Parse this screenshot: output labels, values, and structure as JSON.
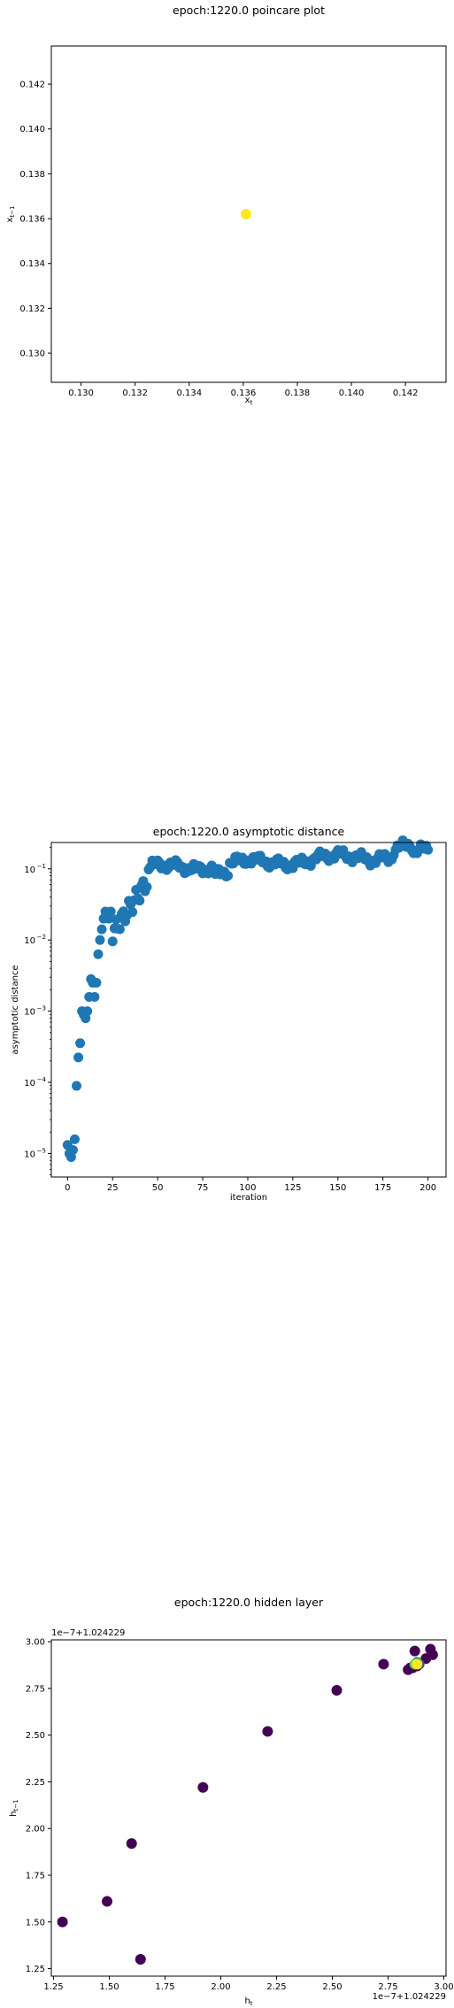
{
  "chart_data": [
    {
      "type": "scatter",
      "title": "epoch:1220.0 poincare plot",
      "xlabel": "x_t",
      "ylabel": "x_{t-1}",
      "xlim": [
        0.1289,
        0.1435
      ],
      "ylim": [
        0.1287,
        0.1437
      ],
      "xticks": [
        "0.130",
        "0.132",
        "0.134",
        "0.136",
        "0.138",
        "0.140",
        "0.142"
      ],
      "yticks": [
        "0.130",
        "0.132",
        "0.134",
        "0.136",
        "0.138",
        "0.140",
        "0.142"
      ],
      "grid": false,
      "points": [
        {
          "x": 0.1361,
          "y": 0.1362,
          "color": "#fde725"
        }
      ]
    },
    {
      "type": "scatter",
      "title": "epoch:1220.0 asymptotic distance",
      "xlabel": "iteration",
      "ylabel": "asymptotic distance",
      "yscale": "log",
      "xlim": [
        -9,
        210
      ],
      "ylim_exp": [
        -5.33,
        -0.63
      ],
      "xticks": [
        "0",
        "25",
        "50",
        "75",
        "100",
        "125",
        "150",
        "175",
        "200"
      ],
      "yticks": [
        "10",
        "10",
        "10",
        "10",
        "10"
      ],
      "ytick_exponents": [
        "−5",
        "−4",
        "−3",
        "−2",
        "−1"
      ],
      "grid": false,
      "color": "#1f77b4",
      "log10_values_head": [
        -4.88,
        -5.0,
        -5.05,
        -4.95,
        -4.8,
        -4.05,
        -3.65,
        -3.45,
        -3.0,
        -3.05,
        -3.1,
        -3.0,
        -2.8,
        -2.55,
        -2.6,
        -2.8,
        -2.6,
        -2.2,
        -2.0,
        -1.85,
        -1.7,
        -1.6,
        -1.65,
        -1.7,
        -1.6
      ],
      "log10_values_tail_start": -1.9
    },
    {
      "type": "scatter",
      "title": "epoch:1220.0 hidden layer",
      "xlabel": "h_t",
      "ylabel": "h_{t-1}",
      "x_offset_label": "1e−7+1.024229",
      "y_offset_label": "1e−7+1.024229",
      "xlim": [
        1.24,
        3.01
      ],
      "ylim": [
        1.21,
        3.01
      ],
      "xticks": [
        "1.25",
        "1.50",
        "1.75",
        "2.00",
        "2.25",
        "2.50",
        "2.75",
        "3.00"
      ],
      "yticks": [
        "1.25",
        "1.50",
        "1.75",
        "2.00",
        "2.25",
        "2.50",
        "2.75",
        "3.00"
      ],
      "grid": false,
      "points": [
        {
          "x": 1.29,
          "y": 1.5,
          "color": "#440154"
        },
        {
          "x": 1.49,
          "y": 1.61,
          "color": "#440154"
        },
        {
          "x": 1.64,
          "y": 1.3,
          "color": "#440154"
        },
        {
          "x": 1.6,
          "y": 1.92,
          "color": "#440154"
        },
        {
          "x": 1.92,
          "y": 2.22,
          "color": "#440154"
        },
        {
          "x": 2.21,
          "y": 2.52,
          "color": "#440154"
        },
        {
          "x": 2.52,
          "y": 2.74,
          "color": "#440154"
        },
        {
          "x": 2.73,
          "y": 2.88,
          "color": "#440154"
        },
        {
          "x": 2.87,
          "y": 2.95,
          "color": "#440154"
        },
        {
          "x": 2.94,
          "y": 2.96,
          "color": "#440154"
        },
        {
          "x": 2.95,
          "y": 2.93,
          "color": "#440154"
        },
        {
          "x": 2.92,
          "y": 2.91,
          "color": "#440154"
        },
        {
          "x": 2.85,
          "y": 2.86,
          "color": "#440154"
        },
        {
          "x": 2.84,
          "y": 2.85,
          "color": "#440154"
        },
        {
          "x": 2.86,
          "y": 2.86,
          "color": "#440154"
        },
        {
          "x": 2.88,
          "y": 2.87,
          "color": "#440154"
        },
        {
          "x": 2.89,
          "y": 2.88,
          "color": "#3b528b"
        },
        {
          "x": 2.88,
          "y": 2.89,
          "color": "#21918c"
        },
        {
          "x": 2.87,
          "y": 2.88,
          "color": "#5ec962"
        },
        {
          "x": 2.88,
          "y": 2.88,
          "color": "#fde725"
        }
      ]
    }
  ]
}
